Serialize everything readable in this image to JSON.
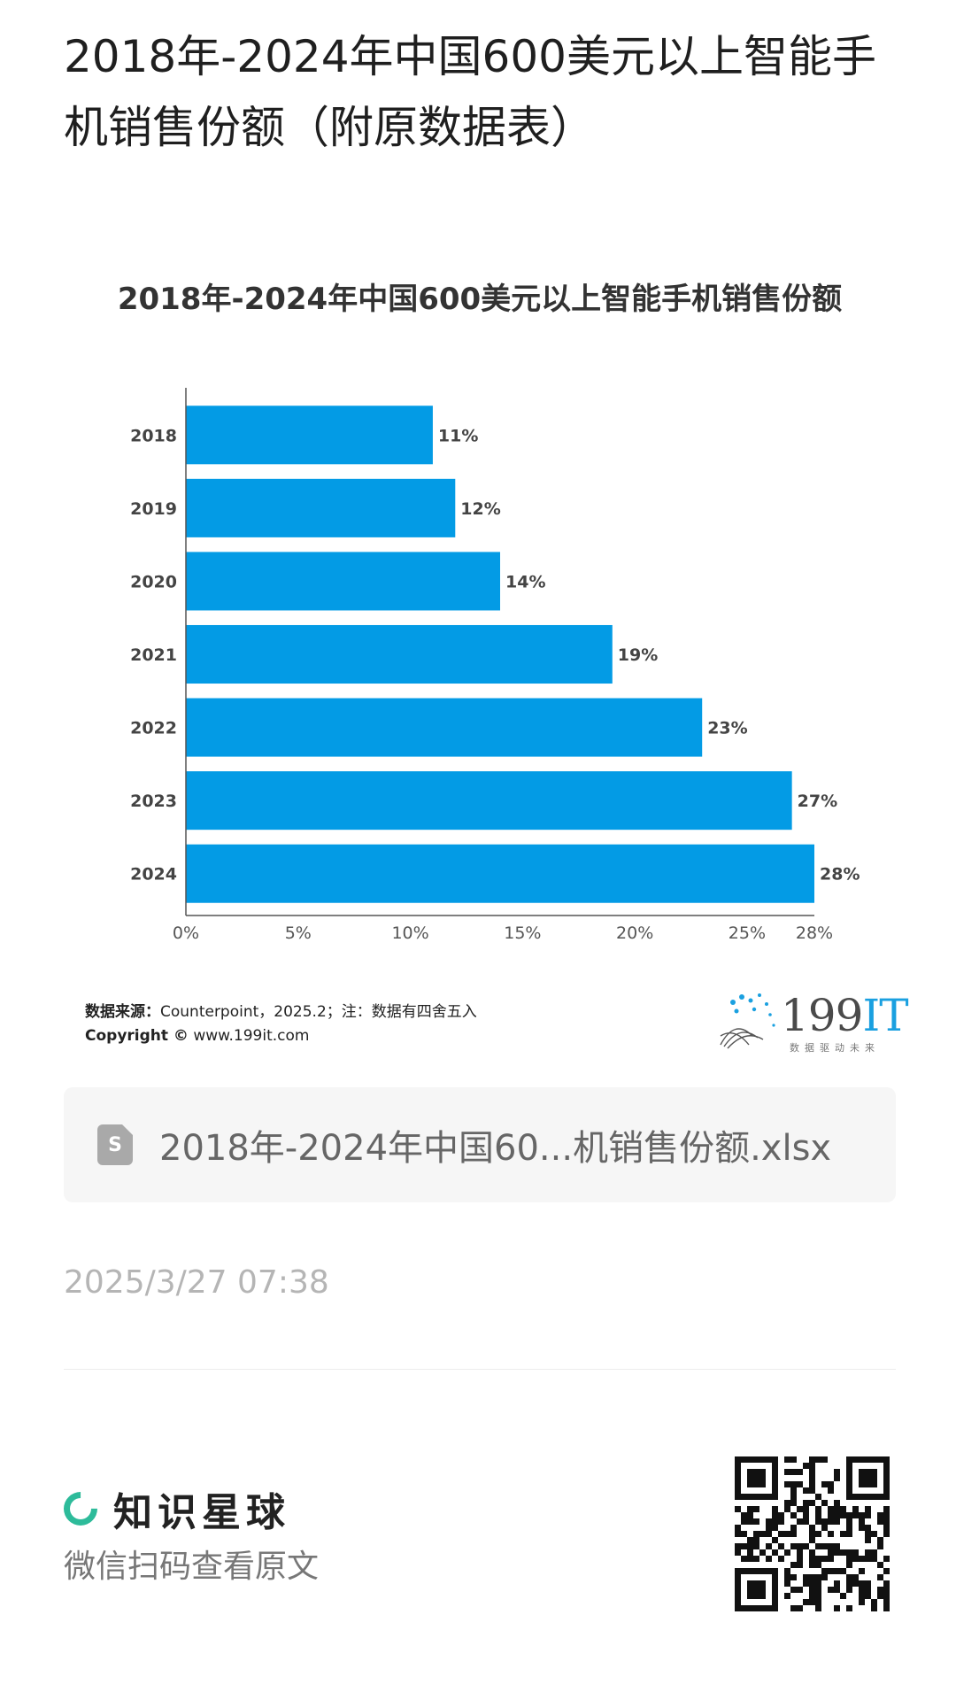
{
  "post": {
    "title": "2018年-2024年中国600美元以上智能手机销售份额（附原数据表）",
    "source_label": "数据来源：",
    "source_text": "Counterpoint，2025.2；注：数据有四舍五入",
    "copyright_label": "Copyright ©",
    "copyright_text": "www.199it.com",
    "brand_num": "199",
    "brand_it": "IT",
    "brand_slogan": "数据驱动未来",
    "attachment_name": "2018年-2024年中国60...机销售份额.xlsx",
    "attachment_icon": "S",
    "timestamp": "2025/3/27 07:38"
  },
  "footer": {
    "brand_name": "知识星球",
    "scan_hint": "微信扫码查看原文"
  },
  "colors": {
    "bar": "#039be5",
    "accent": "#2dbb9a"
  },
  "icons": [
    "spreadsheet-file-icon",
    "planet-ring-icon",
    "qr-code-icon",
    "brand-dots-logo-icon"
  ],
  "chart_data": {
    "type": "bar",
    "orientation": "horizontal",
    "title": "2018年-2024年中国600美元以上智能手机销售份额",
    "categories": [
      "2018",
      "2019",
      "2020",
      "2021",
      "2022",
      "2023",
      "2024"
    ],
    "values": [
      11,
      12,
      14,
      19,
      23,
      27,
      28
    ],
    "value_labels": [
      "11%",
      "12%",
      "14%",
      "19%",
      "23%",
      "27%",
      "28%"
    ],
    "xticks": [
      "0%",
      "5%",
      "10%",
      "15%",
      "20%",
      "25%",
      "28%"
    ],
    "xtick_values": [
      0,
      5,
      10,
      15,
      20,
      25,
      28
    ],
    "xlim": [
      0,
      28
    ],
    "grid": false,
    "xlabel": "",
    "ylabel": ""
  }
}
